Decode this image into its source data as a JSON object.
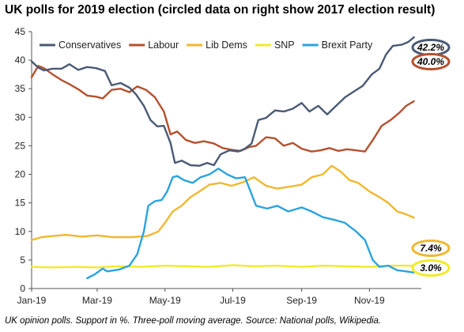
{
  "title": "UK polls for 2019 election (circled data on right show 2017 election result)",
  "source": "UK opinion polls. Support in %. Three-poll moving average. Source: National polls, Wikipedia.",
  "chart_data": {
    "type": "line",
    "title": "UK polls for 2019 election (circled data on right show 2017 election result)",
    "xlabel": "",
    "ylabel": "",
    "x_range": [
      "2019-01-01",
      "2019-12-12"
    ],
    "x_ticks": [
      {
        "date": "2019-01-01",
        "label": "Jan-19"
      },
      {
        "date": "2019-03-01",
        "label": "Mar-19"
      },
      {
        "date": "2019-05-01",
        "label": "May-19"
      },
      {
        "date": "2019-07-01",
        "label": "Jul-19"
      },
      {
        "date": "2019-09-01",
        "label": "Sep-19"
      },
      {
        "date": "2019-11-01",
        "label": "Nov-19"
      }
    ],
    "ylim": [
      0,
      45
    ],
    "y_ticks": [
      0,
      5,
      10,
      15,
      20,
      25,
      30,
      35,
      40,
      45
    ],
    "grid": false,
    "legend_position": "top",
    "series": [
      {
        "name": "Conservatives",
        "color": "#4a5a75",
        "points": [
          [
            "2019-01-01",
            39.8
          ],
          [
            "2019-01-07",
            38.7
          ],
          [
            "2019-01-12",
            38.2
          ],
          [
            "2019-01-20",
            38.5
          ],
          [
            "2019-01-28",
            38.5
          ],
          [
            "2019-02-04",
            39.3
          ],
          [
            "2019-02-12",
            38.3
          ],
          [
            "2019-02-20",
            38.8
          ],
          [
            "2019-02-28",
            38.6
          ],
          [
            "2019-03-08",
            38.1
          ],
          [
            "2019-03-14",
            35.6
          ],
          [
            "2019-03-22",
            36.0
          ],
          [
            "2019-03-30",
            35.2
          ],
          [
            "2019-04-05",
            34.0
          ],
          [
            "2019-04-12",
            32.0
          ],
          [
            "2019-04-18",
            29.5
          ],
          [
            "2019-04-24",
            28.4
          ],
          [
            "2019-04-30",
            28.5
          ],
          [
            "2019-05-06",
            25.5
          ],
          [
            "2019-05-10",
            22.0
          ],
          [
            "2019-05-16",
            22.4
          ],
          [
            "2019-05-24",
            21.6
          ],
          [
            "2019-06-01",
            21.5
          ],
          [
            "2019-06-08",
            22.0
          ],
          [
            "2019-06-14",
            21.6
          ],
          [
            "2019-06-20",
            23.5
          ],
          [
            "2019-06-28",
            24.2
          ],
          [
            "2019-07-06",
            24.0
          ],
          [
            "2019-07-12",
            24.5
          ],
          [
            "2019-07-18",
            25.4
          ],
          [
            "2019-07-24",
            29.5
          ],
          [
            "2019-07-31",
            29.9
          ],
          [
            "2019-08-08",
            31.2
          ],
          [
            "2019-08-16",
            31.0
          ],
          [
            "2019-08-24",
            31.5
          ],
          [
            "2019-09-01",
            32.5
          ],
          [
            "2019-09-08",
            31.0
          ],
          [
            "2019-09-16",
            32.0
          ],
          [
            "2019-09-24",
            30.5
          ],
          [
            "2019-10-01",
            31.8
          ],
          [
            "2019-10-10",
            33.5
          ],
          [
            "2019-10-18",
            34.5
          ],
          [
            "2019-10-26",
            35.5
          ],
          [
            "2019-11-03",
            37.5
          ],
          [
            "2019-11-10",
            38.5
          ],
          [
            "2019-11-16",
            41.0
          ],
          [
            "2019-11-22",
            42.5
          ],
          [
            "2019-11-30",
            42.7
          ],
          [
            "2019-12-06",
            43.2
          ],
          [
            "2019-12-11",
            44.0
          ]
        ]
      },
      {
        "name": "Labour",
        "color": "#b5512e",
        "points": [
          [
            "2019-01-01",
            37.0
          ],
          [
            "2019-01-07",
            39.0
          ],
          [
            "2019-01-12",
            38.6
          ],
          [
            "2019-01-20",
            37.5
          ],
          [
            "2019-01-28",
            36.5
          ],
          [
            "2019-02-04",
            35.8
          ],
          [
            "2019-02-12",
            34.9
          ],
          [
            "2019-02-20",
            33.8
          ],
          [
            "2019-02-28",
            33.6
          ],
          [
            "2019-03-06",
            33.3
          ],
          [
            "2019-03-14",
            34.8
          ],
          [
            "2019-03-22",
            35.0
          ],
          [
            "2019-03-30",
            34.4
          ],
          [
            "2019-04-06",
            35.4
          ],
          [
            "2019-04-14",
            34.8
          ],
          [
            "2019-04-22",
            33.5
          ],
          [
            "2019-04-30",
            31.0
          ],
          [
            "2019-05-06",
            27.0
          ],
          [
            "2019-05-12",
            27.5
          ],
          [
            "2019-05-20",
            26.0
          ],
          [
            "2019-05-28",
            25.5
          ],
          [
            "2019-06-05",
            25.8
          ],
          [
            "2019-06-14",
            25.4
          ],
          [
            "2019-06-22",
            24.6
          ],
          [
            "2019-06-30",
            24.3
          ],
          [
            "2019-07-08",
            24.1
          ],
          [
            "2019-07-16",
            24.8
          ],
          [
            "2019-07-22",
            25.0
          ],
          [
            "2019-07-31",
            26.5
          ],
          [
            "2019-08-08",
            26.3
          ],
          [
            "2019-08-16",
            25.0
          ],
          [
            "2019-08-24",
            25.5
          ],
          [
            "2019-09-01",
            24.5
          ],
          [
            "2019-09-10",
            24.0
          ],
          [
            "2019-09-18",
            24.2
          ],
          [
            "2019-09-26",
            24.6
          ],
          [
            "2019-10-04",
            24.1
          ],
          [
            "2019-10-12",
            24.4
          ],
          [
            "2019-10-20",
            24.2
          ],
          [
            "2019-10-28",
            24.0
          ],
          [
            "2019-11-04",
            26.0
          ],
          [
            "2019-11-12",
            28.5
          ],
          [
            "2019-11-20",
            29.5
          ],
          [
            "2019-11-28",
            30.8
          ],
          [
            "2019-12-04",
            32.0
          ],
          [
            "2019-12-11",
            32.8
          ]
        ]
      },
      {
        "name": "Lib Dems",
        "color": "#f0b830",
        "points": [
          [
            "2019-01-01",
            8.5
          ],
          [
            "2019-01-10",
            9.0
          ],
          [
            "2019-01-20",
            9.2
          ],
          [
            "2019-02-01",
            9.4
          ],
          [
            "2019-02-15",
            9.1
          ],
          [
            "2019-03-01",
            9.3
          ],
          [
            "2019-03-15",
            9.0
          ],
          [
            "2019-04-01",
            9.0
          ],
          [
            "2019-04-15",
            9.2
          ],
          [
            "2019-04-25",
            10.0
          ],
          [
            "2019-05-01",
            11.5
          ],
          [
            "2019-05-08",
            13.5
          ],
          [
            "2019-05-16",
            14.5
          ],
          [
            "2019-05-24",
            16.0
          ],
          [
            "2019-06-01",
            17.0
          ],
          [
            "2019-06-10",
            18.2
          ],
          [
            "2019-06-20",
            18.5
          ],
          [
            "2019-06-30",
            18.0
          ],
          [
            "2019-07-10",
            18.6
          ],
          [
            "2019-07-20",
            19.5
          ],
          [
            "2019-07-31",
            18.0
          ],
          [
            "2019-08-10",
            17.5
          ],
          [
            "2019-08-20",
            17.8
          ],
          [
            "2019-09-01",
            18.2
          ],
          [
            "2019-09-10",
            19.5
          ],
          [
            "2019-09-20",
            20.0
          ],
          [
            "2019-09-28",
            21.5
          ],
          [
            "2019-10-06",
            20.5
          ],
          [
            "2019-10-14",
            19.0
          ],
          [
            "2019-10-22",
            18.5
          ],
          [
            "2019-11-01",
            17.0
          ],
          [
            "2019-11-10",
            16.0
          ],
          [
            "2019-11-18",
            15.0
          ],
          [
            "2019-11-26",
            13.5
          ],
          [
            "2019-12-04",
            13.0
          ],
          [
            "2019-12-11",
            12.4
          ]
        ]
      },
      {
        "name": "SNP",
        "color": "#f2ea2a",
        "points": [
          [
            "2019-01-01",
            3.8
          ],
          [
            "2019-01-20",
            3.7
          ],
          [
            "2019-02-10",
            3.8
          ],
          [
            "2019-03-01",
            3.7
          ],
          [
            "2019-03-20",
            3.9
          ],
          [
            "2019-04-10",
            3.8
          ],
          [
            "2019-05-01",
            4.0
          ],
          [
            "2019-05-20",
            3.9
          ],
          [
            "2019-06-10",
            3.8
          ],
          [
            "2019-07-01",
            4.1
          ],
          [
            "2019-07-20",
            3.9
          ],
          [
            "2019-08-10",
            4.0
          ],
          [
            "2019-09-01",
            3.8
          ],
          [
            "2019-09-20",
            4.0
          ],
          [
            "2019-10-10",
            3.9
          ],
          [
            "2019-11-01",
            3.8
          ],
          [
            "2019-11-20",
            4.0
          ],
          [
            "2019-12-11",
            4.0
          ]
        ]
      },
      {
        "name": "Brexit Party",
        "color": "#2aa4dc",
        "points": [
          [
            "2019-02-20",
            1.8
          ],
          [
            "2019-02-27",
            2.5
          ],
          [
            "2019-03-06",
            3.5
          ],
          [
            "2019-03-10",
            3.0
          ],
          [
            "2019-03-20",
            3.3
          ],
          [
            "2019-03-30",
            4.0
          ],
          [
            "2019-04-06",
            6.0
          ],
          [
            "2019-04-12",
            10.0
          ],
          [
            "2019-04-16",
            14.5
          ],
          [
            "2019-04-22",
            15.3
          ],
          [
            "2019-04-28",
            15.5
          ],
          [
            "2019-05-03",
            17.0
          ],
          [
            "2019-05-08",
            19.5
          ],
          [
            "2019-05-12",
            19.7
          ],
          [
            "2019-05-18",
            19.0
          ],
          [
            "2019-05-26",
            18.5
          ],
          [
            "2019-06-02",
            19.5
          ],
          [
            "2019-06-10",
            20.0
          ],
          [
            "2019-06-18",
            21.0
          ],
          [
            "2019-06-26",
            20.0
          ],
          [
            "2019-07-04",
            19.3
          ],
          [
            "2019-07-12",
            19.5
          ],
          [
            "2019-07-22",
            14.5
          ],
          [
            "2019-08-01",
            14.0
          ],
          [
            "2019-08-10",
            14.5
          ],
          [
            "2019-08-20",
            13.5
          ],
          [
            "2019-09-01",
            14.2
          ],
          [
            "2019-09-10",
            13.5
          ],
          [
            "2019-09-20",
            12.5
          ],
          [
            "2019-10-01",
            12.0
          ],
          [
            "2019-10-10",
            11.5
          ],
          [
            "2019-10-20",
            10.0
          ],
          [
            "2019-10-28",
            8.5
          ],
          [
            "2019-11-04",
            5.0
          ],
          [
            "2019-11-10",
            3.8
          ],
          [
            "2019-11-18",
            4.0
          ],
          [
            "2019-11-26",
            3.2
          ],
          [
            "2019-12-04",
            3.0
          ],
          [
            "2019-12-11",
            2.8
          ]
        ]
      }
    ],
    "annotations": [
      {
        "text": "42.2%",
        "value": 42.2,
        "color": "#4a5a75"
      },
      {
        "text": "40.0%",
        "value": 40.0,
        "color": "#b5512e"
      },
      {
        "text": "7.4%",
        "value": 7.4,
        "color": "#f0b830"
      },
      {
        "text": "3.0%",
        "value": 3.0,
        "color": "#f2ea2a"
      }
    ]
  }
}
